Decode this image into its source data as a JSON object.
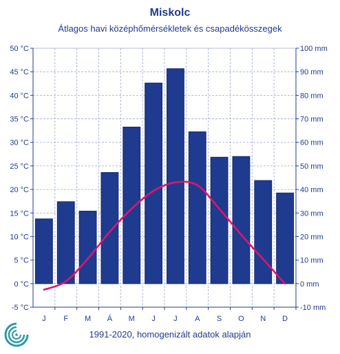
{
  "title": "Miskolc",
  "subtitle": "Átlagos havi középhőmérsékletek  és csapadékösszegek",
  "footer": "1991-2020, homogenizált adatok alapján",
  "chart_data": {
    "type": "bar",
    "categories": [
      "J",
      "F",
      "M",
      "Á",
      "M",
      "J",
      "J",
      "A",
      "S",
      "O",
      "N",
      "D"
    ],
    "series": [
      {
        "type": "bar",
        "axis": "right",
        "color": "#1f3b8f",
        "values": [
          27.5,
          34.8,
          30.8,
          47.2,
          66.5,
          85.2,
          91.3,
          64.5,
          53.7,
          54.0,
          43.8,
          38.5
        ]
      },
      {
        "type": "line",
        "axis": "left",
        "color": "#e0136f",
        "values": [
          -1.3,
          0.5,
          5.3,
          11.0,
          15.9,
          19.7,
          21.5,
          20.9,
          15.9,
          10.4,
          5.2,
          0.0
        ]
      }
    ],
    "y_left": {
      "ylim": [
        -5,
        50
      ],
      "ticks": [
        "-5 °C",
        "0 °C",
        "5 °C",
        "10 °C",
        "15 °C",
        "20 °C",
        "25 °C",
        "30 °C",
        "35 °C",
        "40 °C",
        "45 °C",
        "50 °C"
      ]
    },
    "y_right": {
      "ylim": [
        -10,
        100
      ],
      "ticks": [
        "-10 mm",
        "0 mm",
        "10 mm",
        "20 mm",
        "30 mm",
        "40 mm",
        "50 mm",
        "60 mm",
        "70 mm",
        "80 mm",
        "90 mm",
        "100 mm"
      ]
    },
    "grid": true,
    "gridColor": "#9aa8c8",
    "axisColor": "#1f3b8f"
  },
  "logo": {
    "icon": "swirl-logo-icon",
    "color": "#2a9aa6"
  }
}
